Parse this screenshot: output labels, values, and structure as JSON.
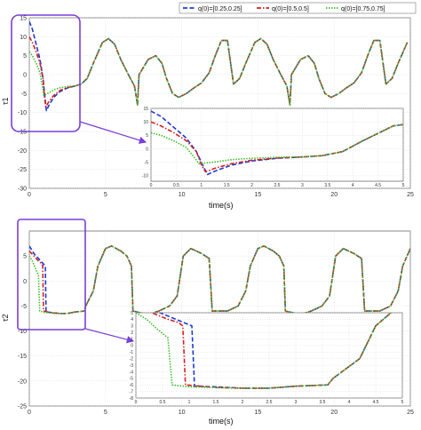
{
  "chart_data": [
    {
      "type": "line",
      "ylabel": "τ1",
      "xlabel": "time(s)",
      "xlim": [
        0,
        25
      ],
      "ylim": [
        -30,
        15
      ],
      "x_ticks": [
        "0",
        "5",
        "10",
        "15",
        "20",
        "25"
      ],
      "y_ticks": [
        "15",
        "10",
        "5",
        "0",
        "-5",
        "-10",
        "-15",
        "-20",
        "-25",
        "-30"
      ],
      "legend": {
        "placement": "top-right",
        "entries": [
          "q(0)=[0.25,0.25]",
          "q(0)=[0.5,0.5]",
          "q(0)=[0.75,0.75]"
        ]
      },
      "series": [
        {
          "name": "q(0)=[0.25,0.25]",
          "color": "#1f3bd1",
          "dash": "dashed",
          "start": [
            [
              0,
              14
            ],
            [
              0.2,
              12
            ],
            [
              0.45,
              8
            ],
            [
              0.7,
              4
            ],
            [
              0.9,
              -1
            ],
            [
              1.05,
              -7
            ],
            [
              1.12,
              -9.5
            ],
            [
              1.3,
              -8
            ],
            [
              1.6,
              -6
            ],
            [
              2.0,
              -4.5
            ],
            [
              2.5,
              -3.5
            ],
            [
              3.0,
              -3
            ]
          ]
        },
        {
          "name": "q(0)=[0.5,0.5]",
          "color": "#d81e1e",
          "dash": "dashdot",
          "start": [
            [
              0,
              10
            ],
            [
              0.2,
              8.5
            ],
            [
              0.45,
              6
            ],
            [
              0.7,
              3
            ],
            [
              0.9,
              -1
            ],
            [
              1.0,
              -6
            ],
            [
              1.08,
              -8.5
            ],
            [
              1.3,
              -7
            ],
            [
              1.6,
              -5.5
            ],
            [
              2.0,
              -4.2
            ],
            [
              2.5,
              -3.4
            ],
            [
              3.0,
              -3
            ]
          ]
        },
        {
          "name": "q(0)=[0.75,0.75]",
          "color": "#3bbf2a",
          "dash": "dotted",
          "start": [
            [
              0,
              6
            ],
            [
              0.2,
              5
            ],
            [
              0.45,
              3
            ],
            [
              0.7,
              0.5
            ],
            [
              0.85,
              -3
            ],
            [
              0.95,
              -5.5
            ],
            [
              1.2,
              -5
            ],
            [
              1.6,
              -4
            ],
            [
              2.0,
              -3.5
            ],
            [
              2.5,
              -3.1
            ],
            [
              3.0,
              -3
            ]
          ]
        }
      ],
      "steady_shape": {
        "period": 10,
        "points": [
          [
            0,
            -3
          ],
          [
            0.4,
            -2.5
          ],
          [
            0.8,
            -1
          ],
          [
            1.2,
            3
          ],
          [
            1.8,
            8.5
          ],
          [
            2.2,
            9.5
          ],
          [
            2.6,
            8
          ],
          [
            3.0,
            4
          ],
          [
            3.5,
            0
          ],
          [
            3.9,
            -3
          ],
          [
            4.1,
            -8
          ],
          [
            4.2,
            0
          ],
          [
            4.8,
            4
          ],
          [
            5.3,
            5
          ],
          [
            5.7,
            3
          ],
          [
            6.0,
            -1
          ],
          [
            6.4,
            -5
          ],
          [
            6.8,
            -6
          ],
          [
            7.3,
            -5
          ],
          [
            7.8,
            -3.5
          ],
          [
            8.3,
            -2.2
          ],
          [
            8.8,
            0.5
          ],
          [
            9.2,
            5
          ],
          [
            9.6,
            9
          ],
          [
            10,
            9
          ]
        ]
      },
      "inset": {
        "xlim": [
          0,
          5
        ],
        "ylim": [
          -12,
          15
        ],
        "x_ticks": [
          "0",
          "0.5",
          "1",
          "1.5",
          "2",
          "2.5",
          "3",
          "3.5",
          "4",
          "4.5",
          "5"
        ],
        "y_ticks": [
          "15",
          "10",
          "5",
          "0",
          "-5",
          "-10"
        ]
      }
    },
    {
      "type": "line",
      "ylabel": "τ2",
      "xlabel": "time(s)",
      "xlim": [
        0,
        25
      ],
      "ylim": [
        -25,
        10
      ],
      "x_ticks": [
        "0",
        "5",
        "10",
        "15",
        "20",
        "25"
      ],
      "y_ticks": [
        "5",
        "0",
        "-5",
        "-10",
        "-15",
        "-20",
        "-25"
      ],
      "series": [
        {
          "name": "q(0)=[0.25,0.25]",
          "color": "#1f3bd1",
          "dash": "dashed",
          "start": [
            [
              0,
              7
            ],
            [
              0.3,
              5.5
            ],
            [
              0.6,
              4.5
            ],
            [
              0.9,
              3.5
            ],
            [
              1.05,
              3
            ],
            [
              1.1,
              -6.2
            ],
            [
              1.5,
              -6.3
            ],
            [
              2.0,
              -6.5
            ],
            [
              2.5,
              -6.5
            ],
            [
              3.0,
              -6.2
            ],
            [
              3.6,
              -6
            ]
          ]
        },
        {
          "name": "q(0)=[0.5,0.5]",
          "color": "#d81e1e",
          "dash": "dashdot",
          "start": [
            [
              0,
              6
            ],
            [
              0.3,
              5
            ],
            [
              0.6,
              4
            ],
            [
              0.8,
              3.5
            ],
            [
              0.88,
              3
            ],
            [
              0.93,
              -6
            ],
            [
              1.5,
              -6.4
            ],
            [
              2.0,
              -6.5
            ],
            [
              2.5,
              -6.5
            ],
            [
              3.0,
              -6.2
            ],
            [
              3.6,
              -6
            ]
          ]
        },
        {
          "name": "q(0)=[0.75,0.75]",
          "color": "#3bbf2a",
          "dash": "dotted",
          "start": [
            [
              0,
              5
            ],
            [
              0.2,
              4
            ],
            [
              0.4,
              2.5
            ],
            [
              0.6,
              1.2
            ],
            [
              0.68,
              -6
            ],
            [
              1.0,
              -6.3
            ],
            [
              1.5,
              -6.4
            ],
            [
              2.0,
              -6.5
            ],
            [
              2.5,
              -6.5
            ],
            [
              3.0,
              -6.2
            ],
            [
              3.6,
              -6
            ]
          ]
        }
      ],
      "steady_shape": {
        "period": 10,
        "points": [
          [
            0,
            -6
          ],
          [
            0.7,
            -5
          ],
          [
            1.2,
            -2
          ],
          [
            1.5,
            3
          ],
          [
            2.0,
            6.5
          ],
          [
            2.4,
            7
          ],
          [
            3.0,
            6
          ],
          [
            3.4,
            5
          ],
          [
            3.7,
            3
          ],
          [
            3.8,
            -6
          ],
          [
            4.5,
            -6.5
          ],
          [
            5,
            -6.5
          ],
          [
            5.5,
            -6
          ],
          [
            6.2,
            -5
          ],
          [
            6.7,
            -3
          ],
          [
            7.1,
            5
          ],
          [
            7.6,
            6.5
          ],
          [
            8.3,
            5.5
          ],
          [
            8.8,
            4.5
          ],
          [
            9.0,
            -6
          ],
          [
            10,
            -6
          ]
        ]
      },
      "inset": {
        "xlim": [
          0,
          5
        ],
        "ylim": [
          -8,
          5
        ],
        "x_ticks": [
          "0",
          "0.5",
          "1",
          "1.5",
          "2",
          "2.5",
          "3",
          "3.5",
          "4",
          "4.5",
          "5"
        ],
        "y_ticks": [
          "5",
          "4",
          "3",
          "2",
          "1",
          "0",
          "-1",
          "-2",
          "-3",
          "-4",
          "-5",
          "-6",
          "-7",
          "-8"
        ]
      }
    }
  ],
  "annotation_color": "#7a3fd6"
}
